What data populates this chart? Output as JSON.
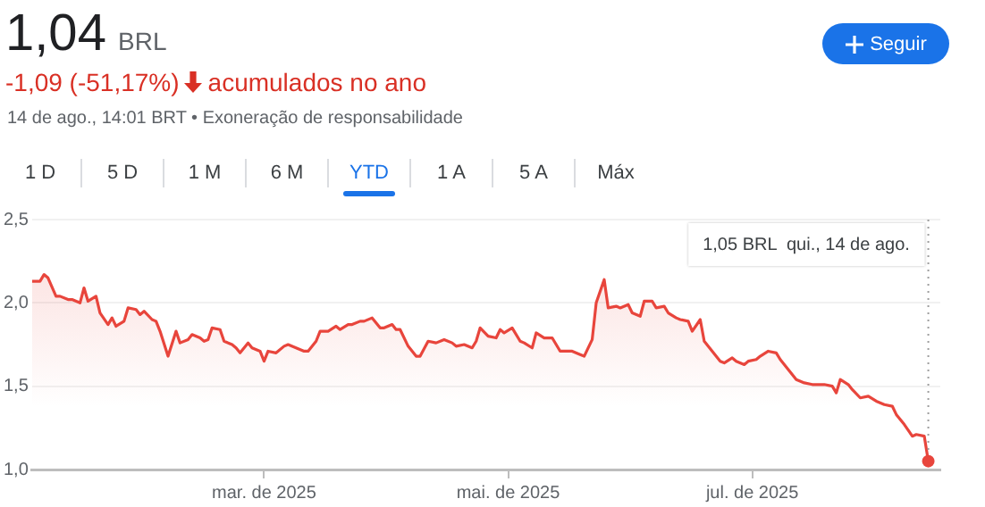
{
  "chart_data": {
    "type": "area",
    "title": "1,04",
    "subtitle": "BRL",
    "annotations": [
      "-1,09 (-51,17%)",
      "acumulados no ano",
      "14 de ago., 14:01 BRT • Exoneração de responsabilidade",
      "Seguir",
      "1 D",
      "5 D",
      "1 M",
      "6 M",
      "YTD",
      "1 A",
      "5 A",
      "Máx",
      "1,05 BRL  qui., 14 de ago."
    ],
    "x": [
      "2025-01-02",
      "2025-01-04",
      "2025-01-05",
      "2025-01-06",
      "2025-01-08",
      "2025-01-09",
      "2025-01-11",
      "2025-01-12",
      "2025-01-14",
      "2025-01-15",
      "2025-01-16",
      "2025-01-18",
      "2025-01-19",
      "2025-01-21",
      "2025-01-22",
      "2025-01-23",
      "2025-01-25",
      "2025-01-26",
      "2025-01-28",
      "2025-01-29",
      "2025-01-30",
      "2025-02-01",
      "2025-02-02",
      "2025-02-03",
      "2025-02-05",
      "2025-02-07",
      "2025-02-08",
      "2025-02-10",
      "2025-02-11",
      "2025-02-13",
      "2025-02-14",
      "2025-02-15",
      "2025-02-16",
      "2025-02-18",
      "2025-02-19",
      "2025-02-21",
      "2025-02-22",
      "2025-02-23",
      "2025-02-25",
      "2025-02-26",
      "2025-02-28",
      "2025-03-01",
      "2025-03-02",
      "2025-03-04",
      "2025-03-06",
      "2025-03-07",
      "2025-03-09",
      "2025-03-11",
      "2025-03-12",
      "2025-03-14",
      "2025-03-15",
      "2025-03-17",
      "2025-03-19",
      "2025-03-20",
      "2025-03-22",
      "2025-03-23",
      "2025-03-25",
      "2025-03-26",
      "2025-03-28",
      "2025-03-30",
      "2025-03-31",
      "2025-04-02",
      "2025-04-03",
      "2025-04-04",
      "2025-04-06",
      "2025-04-08",
      "2025-04-09",
      "2025-04-11",
      "2025-04-13",
      "2025-04-15",
      "2025-04-17",
      "2025-04-18",
      "2025-04-20",
      "2025-04-22",
      "2025-04-23",
      "2025-04-24",
      "2025-04-26",
      "2025-04-28",
      "2025-04-29",
      "2025-04-30",
      "2025-05-02",
      "2025-05-04",
      "2025-05-05",
      "2025-05-07",
      "2025-05-08",
      "2025-05-10",
      "2025-05-12",
      "2025-05-14",
      "2025-05-15",
      "2025-05-17",
      "2025-05-19",
      "2025-05-20",
      "2025-05-22",
      "2025-05-23",
      "2025-05-25",
      "2025-05-26",
      "2025-05-28",
      "2025-05-29",
      "2025-05-31",
      "2025-06-01",
      "2025-06-03",
      "2025-06-04",
      "2025-06-06",
      "2025-06-07",
      "2025-06-09",
      "2025-06-10",
      "2025-06-12",
      "2025-06-13",
      "2025-06-15",
      "2025-06-16",
      "2025-06-18",
      "2025-06-19",
      "2025-06-21",
      "2025-06-23",
      "2025-06-24",
      "2025-06-26",
      "2025-06-27",
      "2025-06-29",
      "2025-06-30",
      "2025-07-02",
      "2025-07-03",
      "2025-07-05",
      "2025-07-07",
      "2025-07-08",
      "2025-07-10",
      "2025-07-12",
      "2025-07-14",
      "2025-07-16",
      "2025-07-17",
      "2025-07-19",
      "2025-07-21",
      "2025-07-22",
      "2025-07-23",
      "2025-07-25",
      "2025-07-26",
      "2025-07-28",
      "2025-07-30",
      "2025-08-01",
      "2025-08-03",
      "2025-08-05",
      "2025-08-06",
      "2025-08-08",
      "2025-08-10",
      "2025-08-11",
      "2025-08-13",
      "2025-08-14"
    ],
    "series": [
      {
        "color": "#e8453c",
        "values": [
          2.13,
          2.13,
          2.17,
          2.15,
          2.04,
          2.04,
          2.02,
          2.02,
          2.0,
          2.09,
          2.01,
          2.04,
          1.94,
          1.87,
          1.91,
          1.86,
          1.89,
          1.97,
          1.96,
          1.93,
          1.95,
          1.9,
          1.89,
          1.83,
          1.68,
          1.83,
          1.76,
          1.78,
          1.81,
          1.79,
          1.77,
          1.78,
          1.85,
          1.84,
          1.77,
          1.75,
          1.73,
          1.7,
          1.76,
          1.73,
          1.71,
          1.65,
          1.71,
          1.7,
          1.74,
          1.75,
          1.73,
          1.71,
          1.71,
          1.77,
          1.83,
          1.83,
          1.86,
          1.84,
          1.87,
          1.87,
          1.89,
          1.89,
          1.91,
          1.85,
          1.85,
          1.87,
          1.84,
          1.84,
          1.74,
          1.68,
          1.68,
          1.77,
          1.76,
          1.78,
          1.76,
          1.74,
          1.75,
          1.73,
          1.77,
          1.85,
          1.8,
          1.79,
          1.84,
          1.82,
          1.85,
          1.77,
          1.76,
          1.73,
          1.82,
          1.79,
          1.79,
          1.71,
          1.71,
          1.71,
          1.69,
          1.68,
          1.78,
          2.0,
          2.14,
          1.97,
          1.98,
          1.97,
          1.99,
          1.94,
          1.92,
          2.01,
          2.01,
          1.97,
          1.98,
          1.94,
          1.91,
          1.9,
          1.89,
          1.83,
          1.9,
          1.77,
          1.71,
          1.65,
          1.64,
          1.67,
          1.65,
          1.63,
          1.65,
          1.66,
          1.68,
          1.71,
          1.7,
          1.66,
          1.6,
          1.54,
          1.52,
          1.51,
          1.51,
          1.51,
          1.5,
          1.46,
          1.54,
          1.51,
          1.48,
          1.43,
          1.44,
          1.41,
          1.39,
          1.38,
          1.33,
          1.27,
          1.2,
          1.21,
          1.2,
          1.05
        ]
      }
    ],
    "xlim": [
      "2025-01-02",
      "2025-08-17"
    ],
    "xticks": [
      {
        "value": "2025-03-01",
        "label": "mar. de 2025"
      },
      {
        "value": "2025-05-01",
        "label": "mai. de 2025"
      },
      {
        "value": "2025-07-01",
        "label": "jul. de 2025"
      }
    ],
    "ylim": [
      1.0,
      2.5
    ],
    "yticks": [
      {
        "value": 1.0,
        "label": "1,0"
      },
      {
        "value": 1.5,
        "label": "1,5"
      },
      {
        "value": 2.0,
        "label": "2,0"
      },
      {
        "value": 2.5,
        "label": "2,5"
      }
    ],
    "ref_lines": [
      {
        "axis": "x",
        "value": "2025-08-14",
        "line_style": "dotted",
        "color": "#9e9e9e"
      }
    ],
    "grid": "y",
    "legend": false,
    "marker": "none",
    "line_style": "solid"
  }
}
